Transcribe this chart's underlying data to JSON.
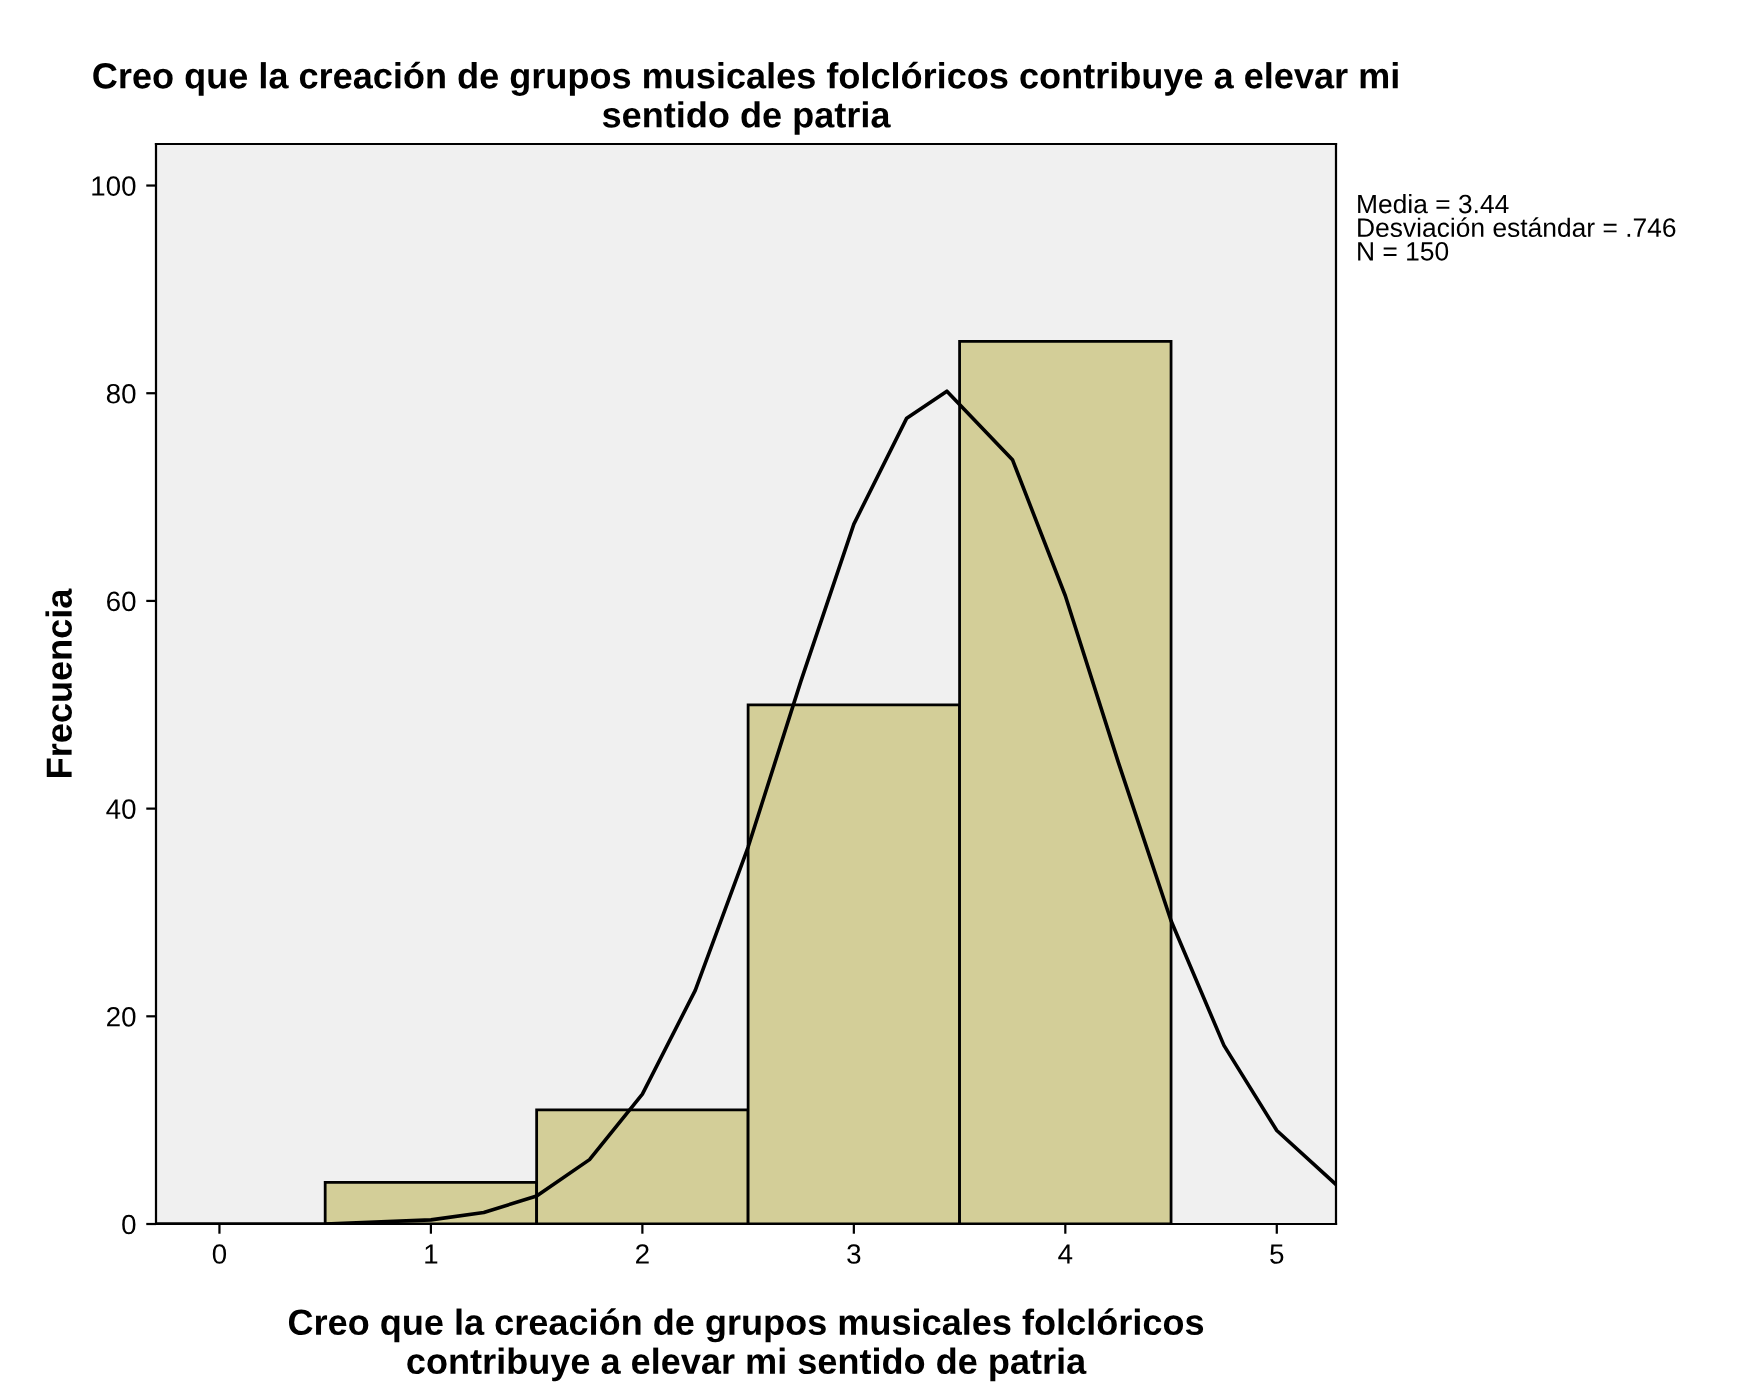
{
  "chart_data": {
    "type": "histogram",
    "title": "Creo que la creación de grupos musicales folclóricos contribuye a elevar mi\nsentido de patria",
    "xlabel": "Creo que la creación de grupos musicales folclóricos\ncontribuye a elevar mi sentido de patria",
    "ylabel": "Frecuencia",
    "bins": [
      0.5,
      1.5,
      2.5,
      3.5,
      4.5
    ],
    "values": [
      4,
      11,
      50,
      85
    ],
    "color": "#d3ce98",
    "series": [
      {
        "type": "line",
        "color": "#000000",
        "x": [
          -0.3,
          0,
          0.5,
          1,
          1.25,
          1.5,
          1.75,
          2,
          2.25,
          2.5,
          2.75,
          3,
          3.25,
          3.44,
          3.75,
          4,
          4.25,
          4.5,
          4.75,
          5,
          5.28
        ],
        "values": [
          0,
          0,
          0,
          0.4,
          1.1,
          2.7,
          6.2,
          12.5,
          22.5,
          36.3,
          52.3,
          67.4,
          77.6,
          80.2,
          73.6,
          60.5,
          44.5,
          29.2,
          17.2,
          9,
          3.8
        ]
      }
    ],
    "xlim": [
      -0.3,
      5.28
    ],
    "ylim": [
      0,
      104
    ],
    "xticks": [
      0,
      1,
      2,
      3,
      4,
      5
    ],
    "yticks": [
      0,
      20,
      40,
      60,
      80,
      100
    ],
    "grid": false,
    "legend": false,
    "annotations": [
      "Media = 3.44\nDesviación estándar = .746\nN = 150"
    ]
  }
}
